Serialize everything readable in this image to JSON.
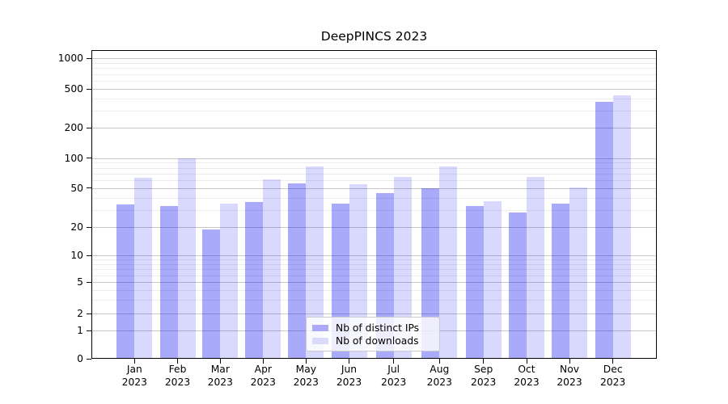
{
  "figure": {
    "title": "DeepPINCS 2023",
    "background": "#ffffff"
  },
  "axes": {
    "yticks": [
      1000,
      500,
      200,
      100,
      50,
      20,
      10,
      5,
      2,
      1,
      0
    ],
    "minor_gridline_values": [
      3,
      4,
      6,
      7,
      8,
      9,
      30,
      40,
      60,
      70,
      80,
      90,
      300,
      400,
      600,
      700,
      800,
      900
    ]
  },
  "legend": {
    "items": [
      {
        "label": "Nb of distinct IPs",
        "color": "#aaaaf9"
      },
      {
        "label": "Nb of downloads",
        "color": "#dadafc"
      }
    ]
  },
  "colors": {
    "bar_ip": "rgba(0,0,240,0.335)",
    "bar_dl": "rgba(0,0,240,0.15)",
    "grid_major": "#c8c8c8",
    "grid_minor": "#ececec",
    "spine": "#000000"
  },
  "chart_data": {
    "type": "bar",
    "title": "DeepPINCS 2023",
    "categories": [
      "Jan 2023",
      "Feb 2023",
      "Mar 2023",
      "Apr 2023",
      "May 2023",
      "Jun 2023",
      "Jul 2023",
      "Aug 2023",
      "Sep 2023",
      "Oct 2023",
      "Nov 2023",
      "Dec 2023"
    ],
    "series": [
      {
        "name": "Nb of distinct IPs",
        "values": [
          34,
          33,
          19,
          36,
          56,
          35,
          44,
          50,
          33,
          28,
          35,
          370
        ]
      },
      {
        "name": "Nb of downloads",
        "values": [
          64,
          100,
          35,
          61,
          83,
          55,
          65,
          83,
          37,
          65,
          51,
          430
        ]
      }
    ],
    "xlabel": "",
    "ylabel": "",
    "yscale": "symlog (log above 1, linear 0-1)",
    "yticks": [
      0,
      1,
      2,
      5,
      10,
      20,
      50,
      100,
      200,
      500,
      1000
    ],
    "ylim": [
      0,
      1300
    ],
    "grid": true,
    "legend_position": "lower center"
  }
}
